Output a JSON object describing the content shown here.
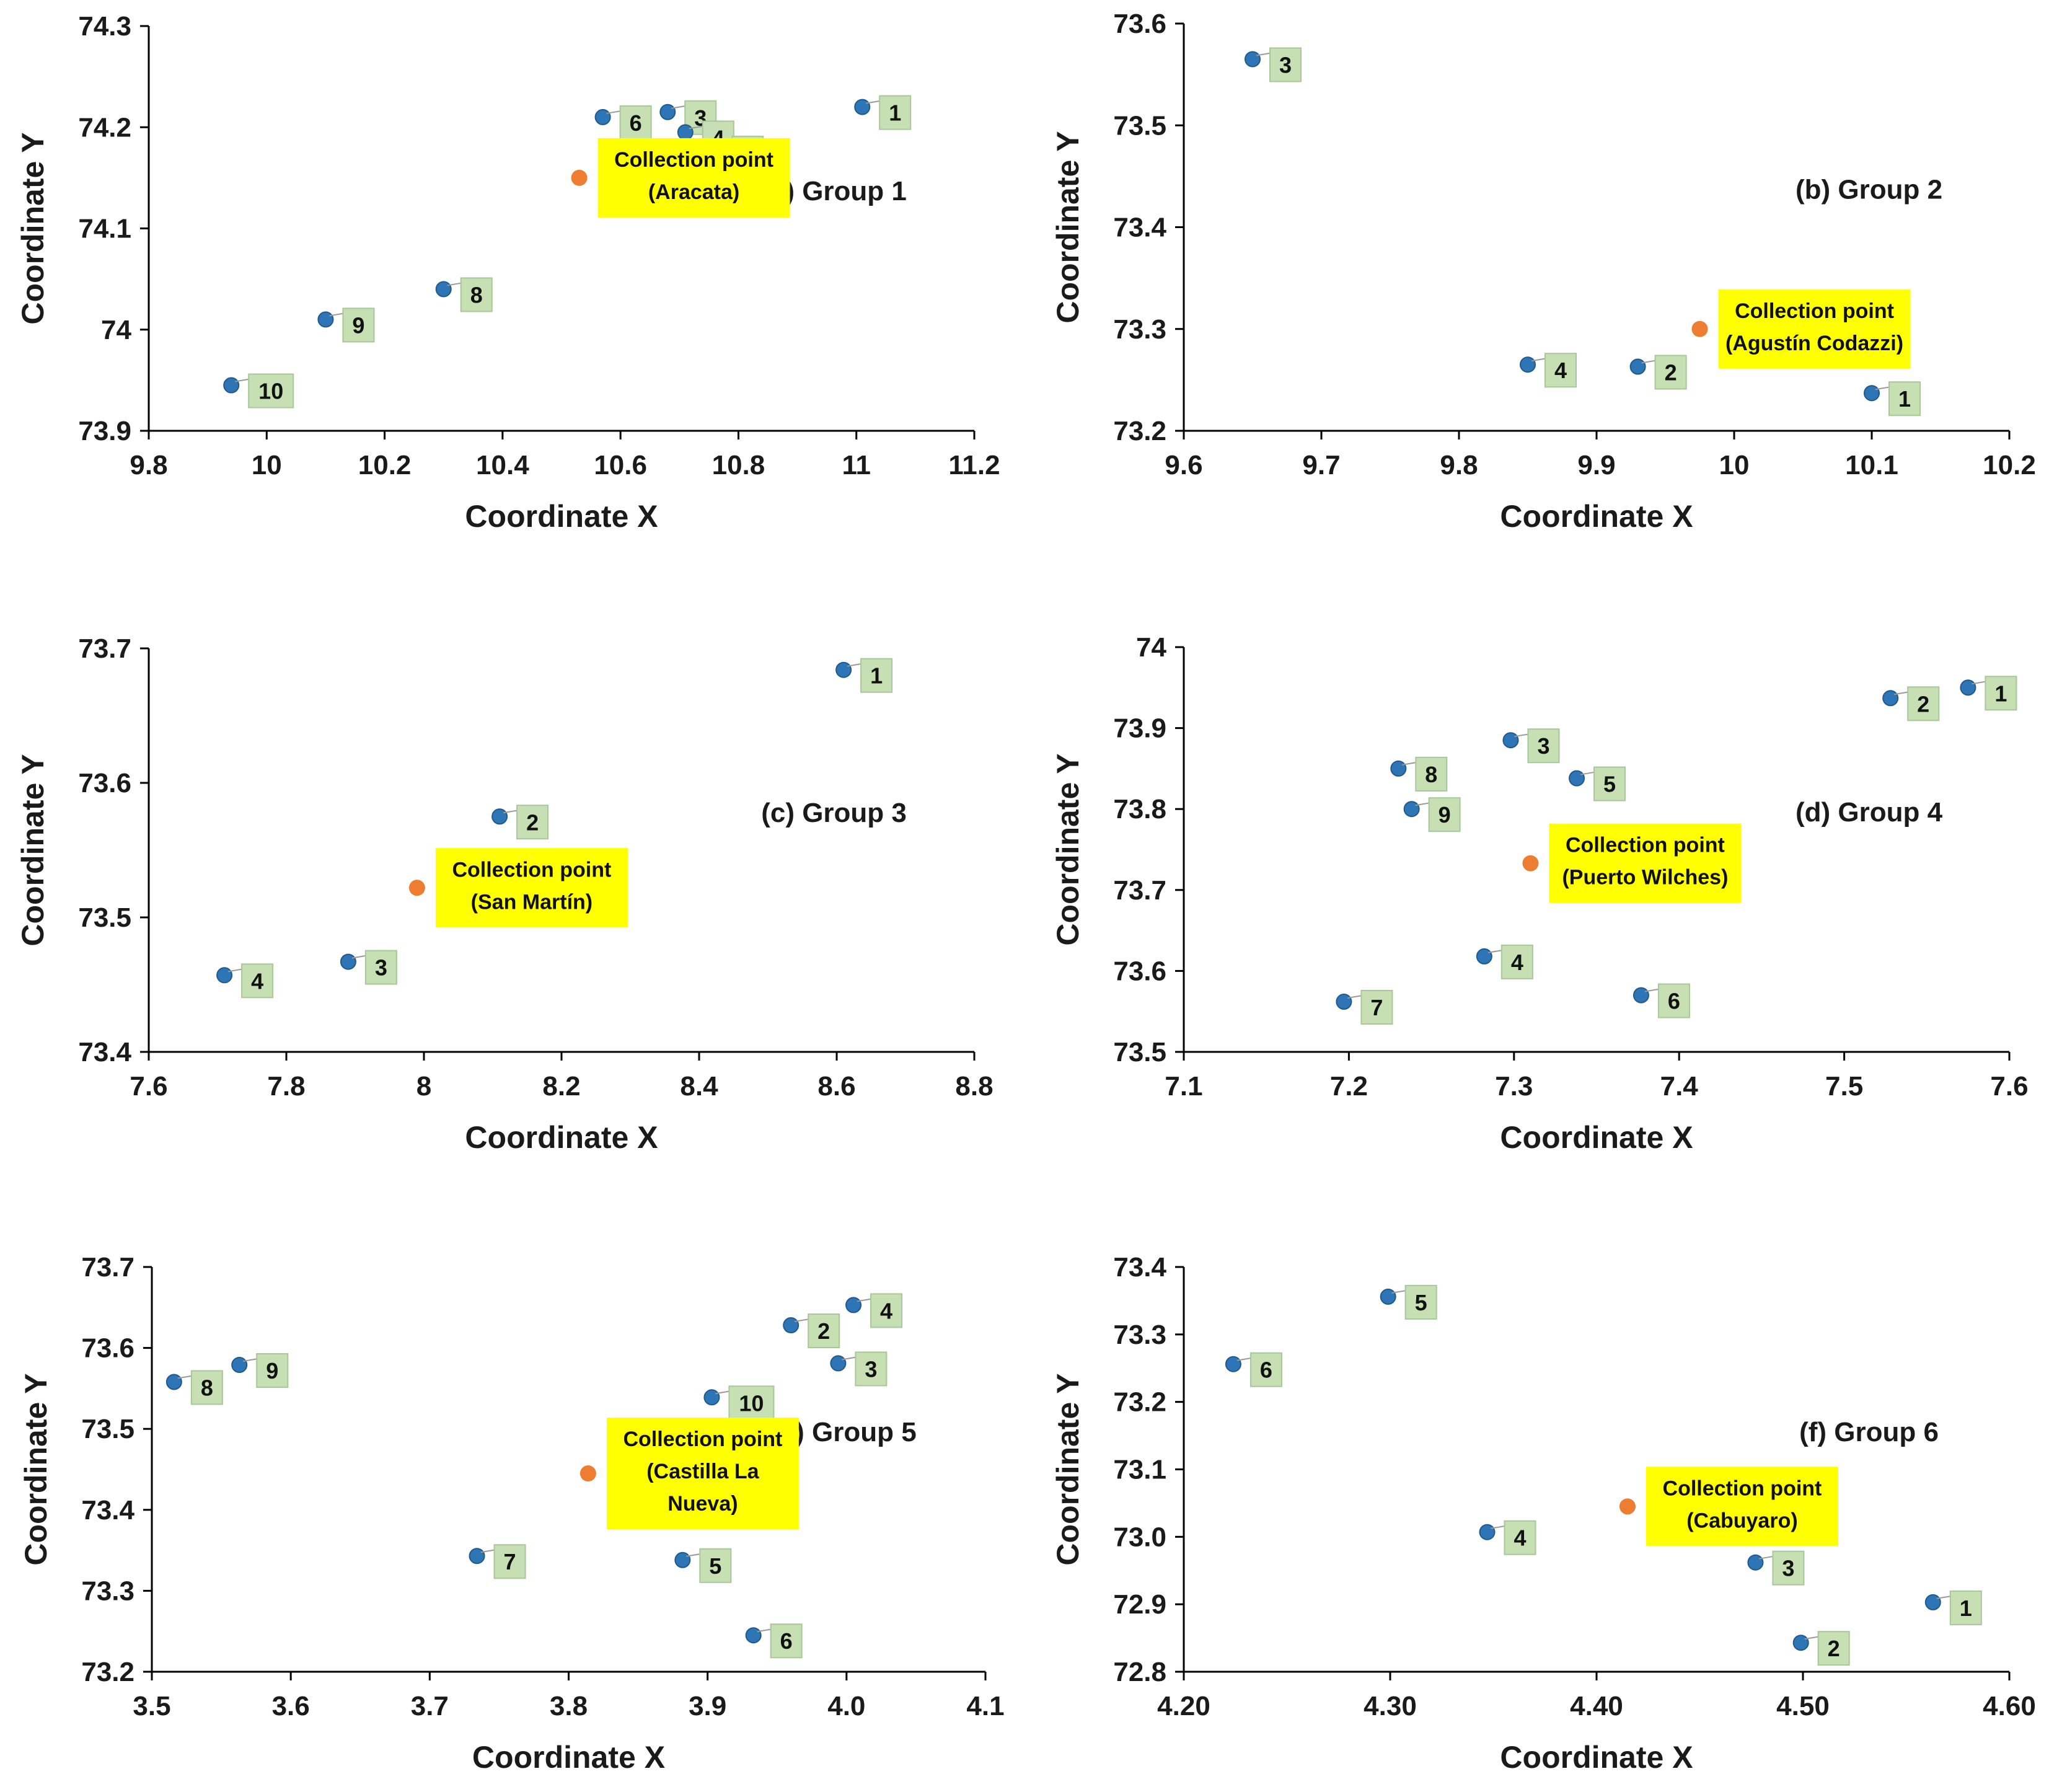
{
  "colors": {
    "point": "#2e75b6",
    "collection_point": "#ed7d31",
    "label_box": "#c6e0b4",
    "label_border": "#a9c79a",
    "callout_box": "#ffff00",
    "axis": "#000000"
  },
  "chart_data": [
    {
      "type": "scatter",
      "panel_label": "(a) Group 1",
      "xlabel": "Coordinate X",
      "ylabel": "Coordinate Y",
      "xlim": [
        9.8,
        11.2
      ],
      "ylim": [
        73.9,
        74.3
      ],
      "xticks": [
        "9.8",
        "10",
        "10.2",
        "10.4",
        "10.6",
        "10.8",
        "11",
        "11.2"
      ],
      "yticks": [
        "73.9",
        "74",
        "74.1",
        "74.2",
        "74.3"
      ],
      "grid": false,
      "points": [
        {
          "label": "1",
          "x": 11.01,
          "y": 74.22
        },
        {
          "label": "3",
          "x": 10.68,
          "y": 74.215
        },
        {
          "label": "4",
          "x": 10.71,
          "y": 74.195
        },
        {
          "label": "5",
          "x": 10.76,
          "y": 74.18
        },
        {
          "label": "6",
          "x": 10.57,
          "y": 74.21
        },
        {
          "label": "8",
          "x": 10.3,
          "y": 74.04
        },
        {
          "label": "9",
          "x": 10.1,
          "y": 74.01
        },
        {
          "label": "10",
          "x": 9.94,
          "y": 73.945
        }
      ],
      "collection_point": {
        "label": "Collection point",
        "name": "(Aracata)",
        "x": 10.53,
        "y": 74.15
      }
    },
    {
      "type": "scatter",
      "panel_label": "(b) Group 2",
      "xlabel": "Coordinate X",
      "ylabel": "Coordinate Y",
      "xlim": [
        9.6,
        10.2
      ],
      "ylim": [
        73.2,
        73.6
      ],
      "xticks": [
        "9.6",
        "9.7",
        "9.8",
        "9.9",
        "10",
        "10.1",
        "10.2"
      ],
      "yticks": [
        "73.2",
        "73.3",
        "73.4",
        "73.5",
        "73.6"
      ],
      "grid": false,
      "points": [
        {
          "label": "1",
          "x": 10.1,
          "y": 73.237
        },
        {
          "label": "2",
          "x": 9.93,
          "y": 73.263
        },
        {
          "label": "3",
          "x": 9.65,
          "y": 73.565
        },
        {
          "label": "4",
          "x": 9.85,
          "y": 73.265
        }
      ],
      "collection_point": {
        "label": "Collection point",
        "name": "(Agustín Codazzi)",
        "x": 9.975,
        "y": 73.3
      }
    },
    {
      "type": "scatter",
      "panel_label": "(c) Group 3",
      "xlabel": "Coordinate X",
      "ylabel": "Coordinate Y",
      "xlim": [
        7.6,
        8.8
      ],
      "ylim": [
        73.4,
        73.7
      ],
      "xticks": [
        "7.6",
        "7.8",
        "8",
        "8.2",
        "8.4",
        "8.6",
        "8.8"
      ],
      "yticks": [
        "73.4",
        "73.5",
        "73.6",
        "73.7"
      ],
      "grid": false,
      "points": [
        {
          "label": "1",
          "x": 8.61,
          "y": 73.684
        },
        {
          "label": "2",
          "x": 8.11,
          "y": 73.575
        },
        {
          "label": "3",
          "x": 7.89,
          "y": 73.467
        },
        {
          "label": "4",
          "x": 7.71,
          "y": 73.457
        }
      ],
      "collection_point": {
        "label": "Collection point",
        "name": "(San Martín)",
        "x": 7.99,
        "y": 73.522
      }
    },
    {
      "type": "scatter",
      "panel_label": "(d) Group 4",
      "xlabel": "Coordinate X",
      "ylabel": "Coordinate Y",
      "xlim": [
        7.1,
        7.6
      ],
      "ylim": [
        73.5,
        74.0
      ],
      "xticks": [
        "7.1",
        "7.2",
        "7.3",
        "7.4",
        "7.5",
        "7.6"
      ],
      "yticks": [
        "73.5",
        "73.6",
        "73.7",
        "73.8",
        "73.9",
        "74"
      ],
      "grid": false,
      "points": [
        {
          "label": "1",
          "x": 7.575,
          "y": 73.95
        },
        {
          "label": "2",
          "x": 7.528,
          "y": 73.937
        },
        {
          "label": "3",
          "x": 7.298,
          "y": 73.885
        },
        {
          "label": "4",
          "x": 7.282,
          "y": 73.618
        },
        {
          "label": "5",
          "x": 7.338,
          "y": 73.838
        },
        {
          "label": "6",
          "x": 7.377,
          "y": 73.57
        },
        {
          "label": "7",
          "x": 7.197,
          "y": 73.562
        },
        {
          "label": "8",
          "x": 7.23,
          "y": 73.85
        },
        {
          "label": "9",
          "x": 7.238,
          "y": 73.8
        }
      ],
      "collection_point": {
        "label": "Collection point",
        "name": "(Puerto Wilches)",
        "x": 7.31,
        "y": 73.733
      }
    },
    {
      "type": "scatter",
      "panel_label": "(e) Group 5",
      "xlabel": "Coordinate X",
      "ylabel": "Coordinate Y",
      "xlim": [
        3.5,
        4.1
      ],
      "ylim": [
        73.2,
        73.7
      ],
      "xticks": [
        "3.5",
        "3.6",
        "3.7",
        "3.8",
        "3.9",
        "4.0",
        "4.1"
      ],
      "yticks": [
        "73.2",
        "73.3",
        "73.4",
        "73.5",
        "73.6",
        "73.7"
      ],
      "grid": false,
      "points": [
        {
          "label": "2",
          "x": 3.96,
          "y": 73.628
        },
        {
          "label": "3",
          "x": 3.994,
          "y": 73.581
        },
        {
          "label": "4",
          "x": 4.005,
          "y": 73.653
        },
        {
          "label": "5",
          "x": 3.882,
          "y": 73.338
        },
        {
          "label": "6",
          "x": 3.933,
          "y": 73.245
        },
        {
          "label": "7",
          "x": 3.734,
          "y": 73.343
        },
        {
          "label": "8",
          "x": 3.516,
          "y": 73.558
        },
        {
          "label": "9",
          "x": 3.563,
          "y": 73.579
        },
        {
          "label": "10",
          "x": 3.903,
          "y": 73.539
        }
      ],
      "collection_point": {
        "label": "Collection point",
        "name": "(Castilla La",
        "name2": "Nueva)",
        "x": 3.814,
        "y": 73.445
      }
    },
    {
      "type": "scatter",
      "panel_label": "(f) Group 6",
      "xlabel": "Coordinate X",
      "ylabel": "Coordinate Y",
      "xlim": [
        4.2,
        4.6
      ],
      "ylim": [
        72.8,
        73.4
      ],
      "xticks": [
        "4.20",
        "4.30",
        "4.40",
        "4.50",
        "4.60"
      ],
      "yticks": [
        "72.8",
        "72.9",
        "73.0",
        "73.1",
        "73.2",
        "73.3",
        "73.4"
      ],
      "grid": false,
      "points": [
        {
          "label": "1",
          "x": 4.563,
          "y": 72.903
        },
        {
          "label": "2",
          "x": 4.499,
          "y": 72.843
        },
        {
          "label": "3",
          "x": 4.477,
          "y": 72.962
        },
        {
          "label": "4",
          "x": 4.347,
          "y": 73.007
        },
        {
          "label": "5",
          "x": 4.299,
          "y": 73.356
        },
        {
          "label": "6",
          "x": 4.224,
          "y": 73.256
        }
      ],
      "collection_point": {
        "label": "Collection point",
        "name": "(Cabuyaro)",
        "x": 4.415,
        "y": 73.045
      }
    }
  ]
}
